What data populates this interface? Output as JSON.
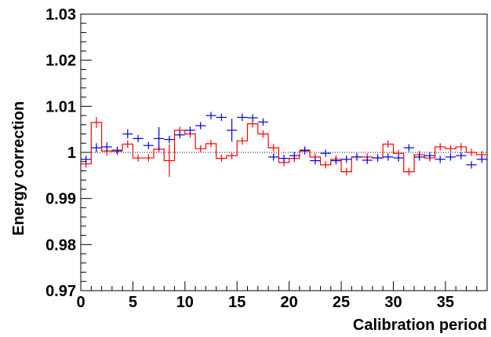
{
  "chart_data": {
    "type": "line",
    "title": "",
    "xlabel": "Calibration period",
    "ylabel": "Energy correction",
    "xlim": [
      0,
      39
    ],
    "ylim": [
      0.97,
      1.03
    ],
    "x_ticks": [
      "0",
      "5",
      "10",
      "15",
      "20",
      "25",
      "30",
      "35"
    ],
    "y_ticks": [
      "0.97",
      "0.98",
      "0.99",
      "1",
      "1.01",
      "1.02",
      "1.03"
    ],
    "grid": false,
    "reference_line": 1.0,
    "colors": {
      "series_step": "#ff0000",
      "series_points": "#0000dd",
      "axes": "#000000"
    },
    "series": [
      {
        "style": "step-histogram",
        "bin_edges": [
          0,
          1,
          2,
          3,
          4,
          5,
          6,
          7,
          8,
          9,
          10,
          11,
          12,
          13,
          14,
          15,
          16,
          17,
          18,
          19,
          20,
          21,
          22,
          23,
          24,
          25,
          26,
          27,
          28,
          29,
          30,
          31,
          32,
          33,
          34,
          35,
          36,
          37,
          38,
          39
        ],
        "values": [
          0.9975,
          1.0065,
          1.0003,
          1.0005,
          1.0018,
          0.9988,
          0.9988,
          1.0007,
          0.9982,
          1.0048,
          1.004,
          1.0008,
          1.0019,
          0.9987,
          0.9993,
          1.0025,
          1.0062,
          1.004,
          1.001,
          0.9978,
          0.9987,
          1.0003,
          0.999,
          0.9973,
          0.9985,
          0.9958,
          0.999,
          0.999,
          0.9988,
          1.0018,
          0.9998,
          0.9958,
          0.9995,
          0.9988,
          1.0012,
          1.0008,
          1.0012,
          1.0,
          0.9995
        ],
        "errors": [
          0.0008,
          0.0012,
          0.001,
          0.0008,
          0.0008,
          0.0008,
          0.0008,
          0.0008,
          0.0035,
          0.0008,
          0.0008,
          0.0008,
          0.0008,
          0.0008,
          0.0008,
          0.0008,
          0.0008,
          0.0008,
          0.0008,
          0.0008,
          0.0008,
          0.0008,
          0.0008,
          0.0008,
          0.0008,
          0.0008,
          0.0008,
          0.0008,
          0.0008,
          0.0008,
          0.0008,
          0.0008,
          0.0008,
          0.0008,
          0.0008,
          0.0008,
          0.0008,
          0.0008,
          0.0008
        ]
      },
      {
        "style": "points-with-errors",
        "x": [
          0.5,
          1.5,
          2.5,
          3.5,
          4.5,
          5.5,
          6.5,
          7.5,
          8.5,
          9.5,
          10.5,
          11.5,
          12.5,
          13.5,
          14.5,
          15.5,
          16.5,
          17.5,
          18.5,
          19.5,
          20.5,
          21.5,
          22.5,
          23.5,
          24.5,
          25.5,
          26.5,
          27.5,
          28.5,
          29.5,
          30.5,
          31.5,
          32.5,
          33.5,
          34.5,
          35.5,
          36.5,
          37.5,
          38.5
        ],
        "values": [
          0.9985,
          1.001,
          1.0012,
          1.0003,
          1.004,
          1.003,
          1.0015,
          1.003,
          1.0028,
          1.0038,
          1.0048,
          1.0058,
          1.008,
          1.0076,
          1.0048,
          1.0076,
          1.0075,
          1.0066,
          0.999,
          0.9987,
          0.9993,
          1.0005,
          0.9982,
          0.9998,
          0.9982,
          0.9985,
          0.999,
          0.9983,
          0.9988,
          0.999,
          0.9988,
          1.001,
          0.999,
          0.9993,
          0.9985,
          0.999,
          0.9993,
          0.9973,
          0.9985
        ],
        "errors": [
          0.0008,
          0.001,
          0.001,
          0.0008,
          0.001,
          0.0008,
          0.0008,
          0.0025,
          0.0008,
          0.0008,
          0.0008,
          0.0008,
          0.0008,
          0.0008,
          0.0025,
          0.0008,
          0.0008,
          0.0008,
          0.0008,
          0.0008,
          0.0008,
          0.0008,
          0.0008,
          0.0008,
          0.0008,
          0.0008,
          0.0008,
          0.0008,
          0.0008,
          0.0008,
          0.0008,
          0.0008,
          0.0008,
          0.0008,
          0.0008,
          0.0008,
          0.0008,
          0.0008,
          0.0008
        ]
      }
    ]
  }
}
